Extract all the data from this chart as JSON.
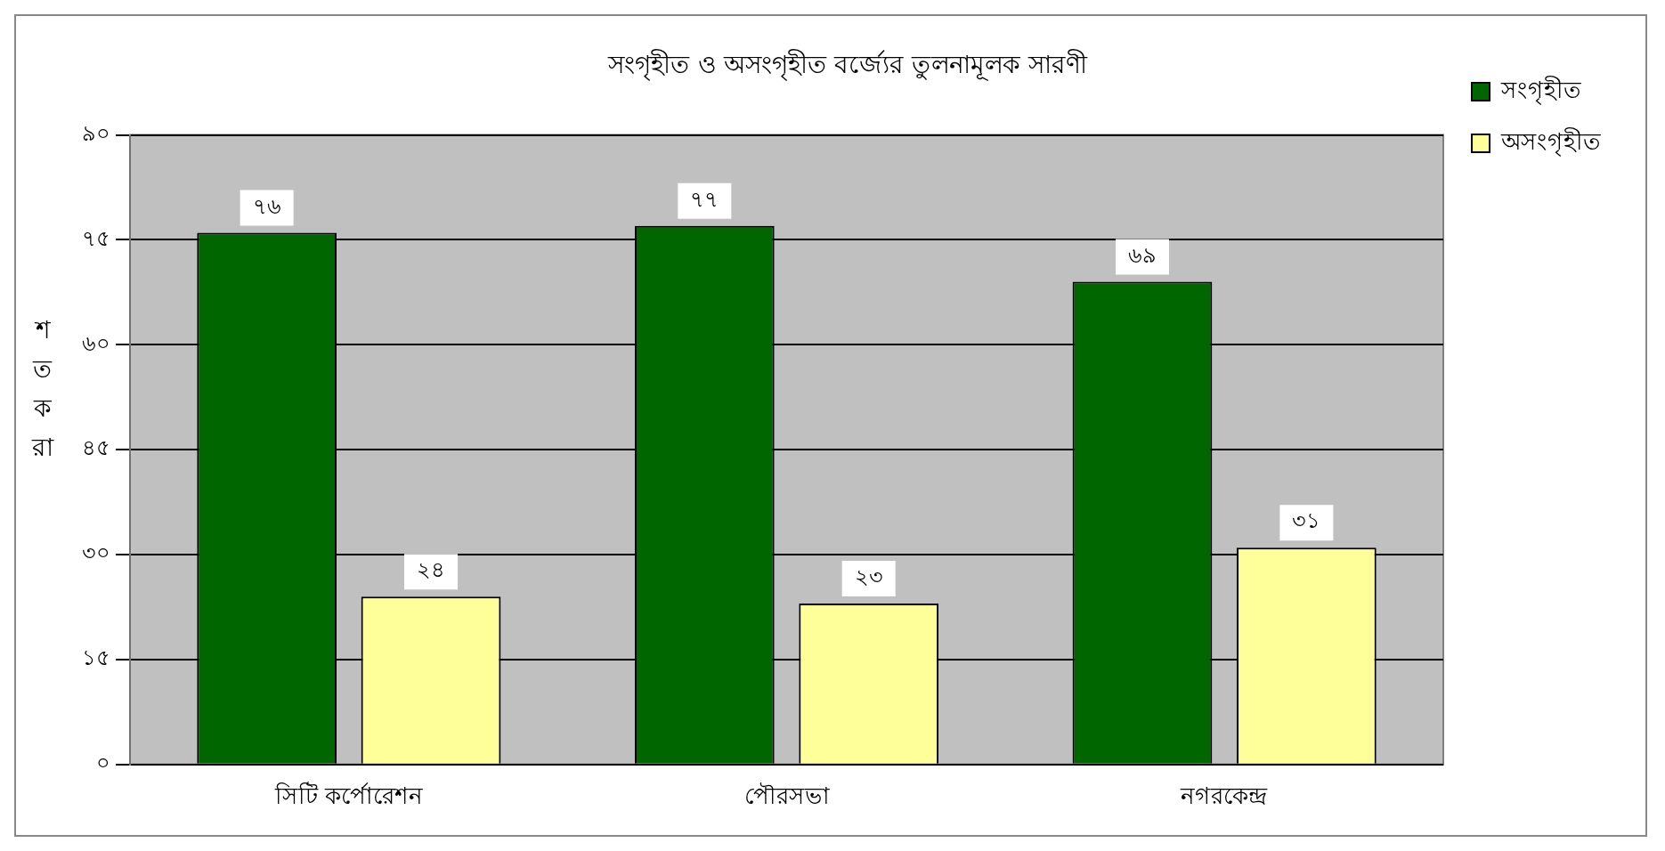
{
  "chart_data": {
    "type": "bar",
    "title": "সংগৃহীত ও অসংগৃহীত বর্জ্যের তুলনামূলক সারণী",
    "ylabel": "শতকরা",
    "categories": [
      "সিটি কর্পোরেশন",
      "পৌরসভা",
      "নগরকেন্দ্র"
    ],
    "series": [
      {
        "name": "সংগৃহীত",
        "color": "#006600",
        "values": [
          76,
          77,
          69
        ],
        "value_labels": [
          "৭৬",
          "৭৭",
          "৬৯"
        ]
      },
      {
        "name": "অসংগৃহীত",
        "color": "#ffff99",
        "values": [
          24,
          23,
          31
        ],
        "value_labels": [
          "২৪",
          "২৩",
          "৩১"
        ]
      }
    ],
    "ylim": [
      0,
      90
    ],
    "yticks": [
      {
        "value": 0,
        "label": "০"
      },
      {
        "value": 15,
        "label": "১৫"
      },
      {
        "value": 30,
        "label": "৩০"
      },
      {
        "value": 45,
        "label": "৪৫"
      },
      {
        "value": 60,
        "label": "৬০"
      },
      {
        "value": 75,
        "label": "৭৫"
      },
      {
        "value": 90,
        "label": "৯০"
      }
    ],
    "grid": "y",
    "legend": "right"
  }
}
